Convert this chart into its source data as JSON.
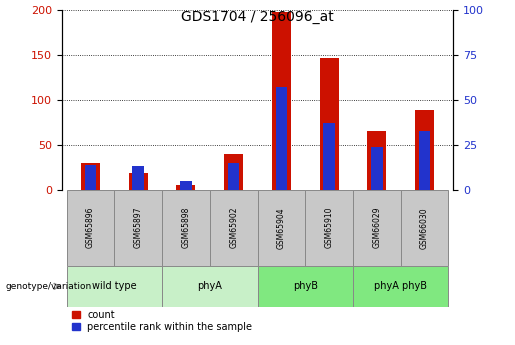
{
  "title": "GDS1704 / 256096_at",
  "samples": [
    "GSM65896",
    "GSM65897",
    "GSM65898",
    "GSM65902",
    "GSM65904",
    "GSM65910",
    "GSM66029",
    "GSM66030"
  ],
  "count_values": [
    30,
    19,
    5,
    40,
    198,
    147,
    65,
    89
  ],
  "percentile_values": [
    14,
    13,
    5,
    15,
    57,
    37,
    24,
    33
  ],
  "groups": [
    {
      "label": "wild type",
      "indices": [
        0,
        1
      ],
      "color": "#c8f0c8"
    },
    {
      "label": "phyA",
      "indices": [
        2,
        3
      ],
      "color": "#c8f0c8"
    },
    {
      "label": "phyB",
      "indices": [
        4,
        5
      ],
      "color": "#80e880"
    },
    {
      "label": "phyA phyB",
      "indices": [
        6,
        7
      ],
      "color": "#80e880"
    }
  ],
  "bar_width": 0.4,
  "count_color": "#cc1100",
  "percentile_color": "#2233cc",
  "left_ylim": [
    0,
    200
  ],
  "right_ylim": [
    0,
    100
  ],
  "left_yticks": [
    0,
    50,
    100,
    150,
    200
  ],
  "right_yticks": [
    0,
    25,
    50,
    75,
    100
  ],
  "grid_color": "#000000",
  "background_color": "#ffffff",
  "plot_bg_color": "#ffffff",
  "sample_box_color": "#c8c8c8",
  "sample_box_edge_color": "#888888",
  "legend_count_label": "count",
  "legend_percentile_label": "percentile rank within the sample",
  "genotype_label": "genotype/variation"
}
